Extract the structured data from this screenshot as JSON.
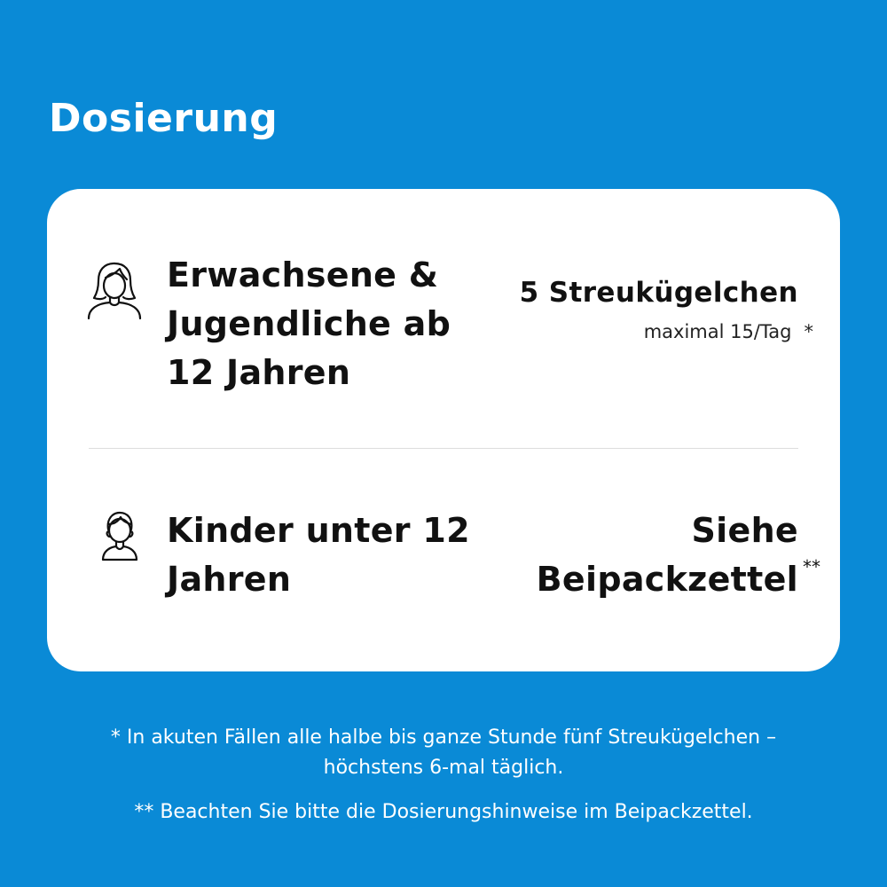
{
  "title": "Dosierung",
  "adult": {
    "icon": "adult-woman-icon",
    "label_lines": [
      "Erwachsene &",
      "Jugendliche ab",
      "12 Jahren"
    ],
    "dose": "5 Streukügelchen",
    "dose_note": "maximal 15/Tag",
    "dose_note_marker": "*"
  },
  "child": {
    "icon": "child-icon",
    "label_lines": [
      "Kinder unter 12",
      "Jahren"
    ],
    "dose_lines": [
      "Siehe",
      "Beipackzettel"
    ],
    "dose_marker": "**"
  },
  "footnotes": {
    "first_lines": [
      "* In akuten Fällen alle halbe bis ganze Stunde fünf Streukügelchen –",
      "höchstens 6-mal täglich."
    ],
    "second": "** Beachten Sie bitte die Dosierungshinweise im Beipackzettel."
  },
  "colors": {
    "background": "#0a8ad6",
    "card": "#ffffff",
    "text": "#111111"
  }
}
